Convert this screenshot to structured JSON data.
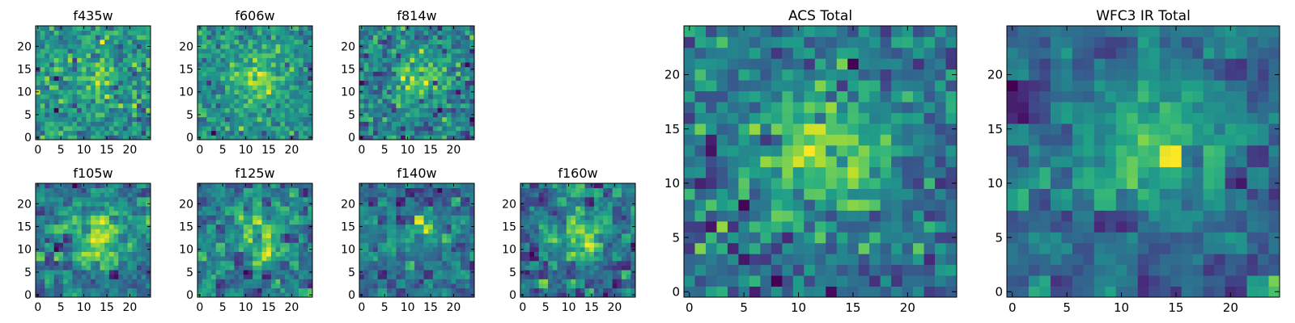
{
  "chart_data": [
    {
      "type": "heatmap",
      "title": "f435w",
      "grid": [
        25,
        25
      ],
      "colormap": "viridis",
      "origin": "lower",
      "xlim": [
        -0.5,
        24.5
      ],
      "ylim": [
        -0.5,
        24.5
      ],
      "xticks": [
        "0",
        "5",
        "10",
        "15",
        "20"
      ],
      "yticks": [
        "0",
        "5",
        "10",
        "15",
        "20"
      ],
      "texture": "pixel",
      "signal": 0.25
    },
    {
      "type": "heatmap",
      "title": "f606w",
      "grid": [
        25,
        25
      ],
      "colormap": "viridis",
      "origin": "lower",
      "xlim": [
        -0.5,
        24.5
      ],
      "ylim": [
        -0.5,
        24.5
      ],
      "xticks": [
        "0",
        "5",
        "10",
        "15",
        "20"
      ],
      "yticks": [
        "0",
        "5",
        "10",
        "15",
        "20"
      ],
      "texture": "pixel",
      "signal": 0.45
    },
    {
      "type": "heatmap",
      "title": "f814w",
      "grid": [
        25,
        25
      ],
      "colormap": "viridis",
      "origin": "lower",
      "xlim": [
        -0.5,
        24.5
      ],
      "ylim": [
        -0.5,
        24.5
      ],
      "xticks": [
        "0",
        "5",
        "10",
        "15",
        "20"
      ],
      "yticks": [
        "0",
        "5",
        "10",
        "15",
        "20"
      ],
      "texture": "pixel",
      "signal": 0.4
    },
    {
      "type": "heatmap",
      "title": "f105w",
      "grid": [
        25,
        25
      ],
      "colormap": "viridis",
      "origin": "lower",
      "xlim": [
        -0.5,
        24.5
      ],
      "ylim": [
        -0.5,
        24.5
      ],
      "xticks": [
        "0",
        "5",
        "10",
        "15",
        "20"
      ],
      "yticks": [
        "0",
        "5",
        "10",
        "15",
        "20"
      ],
      "texture": "blocky",
      "signal": 0.5
    },
    {
      "type": "heatmap",
      "title": "f125w",
      "grid": [
        25,
        25
      ],
      "colormap": "viridis",
      "origin": "lower",
      "xlim": [
        -0.5,
        24.5
      ],
      "ylim": [
        -0.5,
        24.5
      ],
      "xticks": [
        "0",
        "5",
        "10",
        "15",
        "20"
      ],
      "yticks": [
        "0",
        "5",
        "10",
        "15",
        "20"
      ],
      "texture": "blocky",
      "signal": 0.35
    },
    {
      "type": "heatmap",
      "title": "f140w",
      "grid": [
        25,
        25
      ],
      "colormap": "viridis",
      "origin": "lower",
      "xlim": [
        -0.5,
        24.5
      ],
      "ylim": [
        -0.5,
        24.5
      ],
      "xticks": [
        "0",
        "5",
        "10",
        "15",
        "20"
      ],
      "yticks": [
        "0",
        "5",
        "10",
        "15",
        "20"
      ],
      "texture": "blocky",
      "signal": 0.35
    },
    {
      "type": "heatmap",
      "title": "f160w",
      "grid": [
        25,
        25
      ],
      "colormap": "viridis",
      "origin": "lower",
      "xlim": [
        -0.5,
        24.5
      ],
      "ylim": [
        -0.5,
        24.5
      ],
      "xticks": [
        "0",
        "5",
        "10",
        "15",
        "20"
      ],
      "yticks": [
        "0",
        "5",
        "10",
        "15",
        "20"
      ],
      "texture": "blocky",
      "signal": 0.4
    },
    {
      "type": "heatmap",
      "title": "ACS Total",
      "grid": [
        25,
        25
      ],
      "colormap": "viridis",
      "origin": "lower",
      "xlim": [
        -0.5,
        24.5
      ],
      "ylim": [
        -0.5,
        24.5
      ],
      "xticks": [
        "0",
        "5",
        "10",
        "15",
        "20"
      ],
      "yticks": [
        "0",
        "5",
        "10",
        "15",
        "20"
      ],
      "texture": "pixel",
      "signal": 0.5
    },
    {
      "type": "heatmap",
      "title": "WFC3 IR Total",
      "grid": [
        25,
        25
      ],
      "colormap": "viridis",
      "origin": "lower",
      "xlim": [
        -0.5,
        24.5
      ],
      "ylim": [
        -0.5,
        24.5
      ],
      "xticks": [
        "0",
        "5",
        "10",
        "15",
        "20"
      ],
      "yticks": [
        "0",
        "5",
        "10",
        "15",
        "20"
      ],
      "texture": "blocky",
      "signal": 0.55
    }
  ]
}
